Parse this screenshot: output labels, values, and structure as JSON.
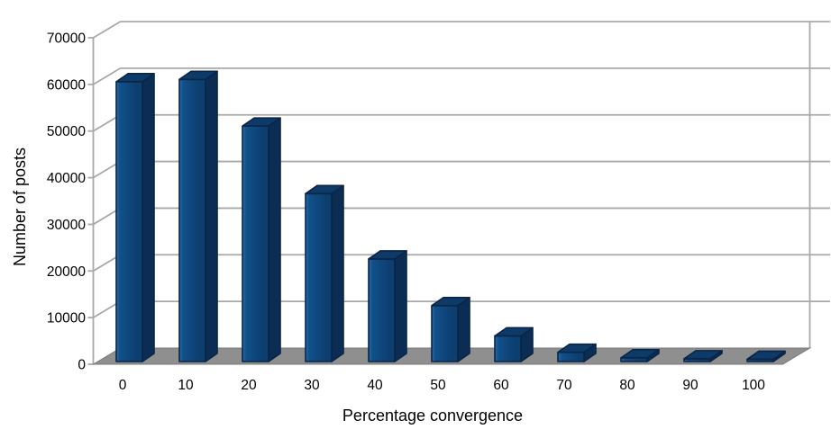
{
  "chart_data": {
    "type": "bar",
    "style": "3d-column",
    "title": "",
    "xlabel": "Percentage convergence",
    "ylabel": "Number of posts",
    "categories": [
      "0",
      "10",
      "20",
      "30",
      "40",
      "50",
      "60",
      "70",
      "80",
      "90",
      "100"
    ],
    "values": [
      60000,
      60500,
      50500,
      36000,
      22000,
      12000,
      5500,
      2000,
      800,
      600,
      500
    ],
    "series": [
      {
        "name": "Number of posts",
        "values": [
          60000,
          60500,
          50500,
          36000,
          22000,
          12000,
          5500,
          2000,
          800,
          600,
          500
        ]
      }
    ],
    "ylim": [
      0,
      70000
    ],
    "y_ticks": [
      0,
      10000,
      20000,
      30000,
      40000,
      50000,
      60000,
      70000
    ],
    "grid": true,
    "legend": false,
    "colors": {
      "bar_front": "#115089",
      "bar_front_highlight": "#2A6CB0",
      "bar_front_dark": "#0D3E70",
      "bar_top": "#0E3A69",
      "bar_side": "#0B2D54",
      "bar_outline": "#0A2545",
      "floor": "#8F8F8F",
      "floor_edge": "#7A7A7A",
      "grid_line": "#A9A9A9",
      "text": "#000000",
      "background": "#FFFFFF"
    }
  }
}
